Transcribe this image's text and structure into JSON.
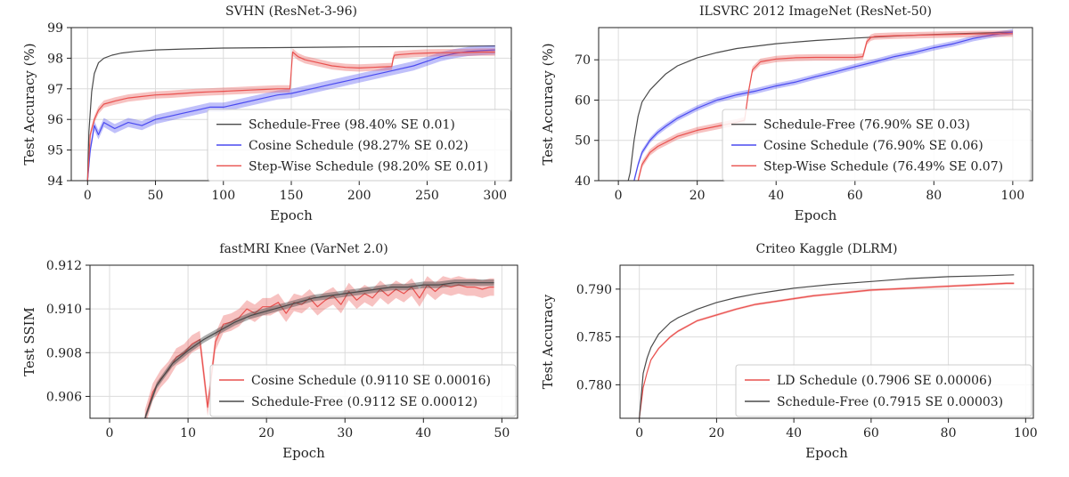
{
  "colors": {
    "schedule_free": "#4a4a4a",
    "cosine": "#4a4af0",
    "step": "#e9504e",
    "ld": "#e9504e",
    "grid": "#dcdcdc",
    "frame": "#222222"
  },
  "chart_data": [
    {
      "type": "line",
      "title": "SVHN (ResNet-3-96)",
      "xlabel": "Epoch",
      "ylabel": "Test Accuracy (%)",
      "xlim": [
        -12,
        312
      ],
      "ylim": [
        94,
        99
      ],
      "xticks": [
        0,
        50,
        100,
        150,
        200,
        250,
        300
      ],
      "yticks": [
        94,
        95,
        96,
        97,
        98,
        99
      ],
      "grid": true,
      "legend_position": "lower-right",
      "series": [
        {
          "name": "Schedule-Free (98.40% SE 0.01)",
          "color_key": "schedule_free",
          "band": 0,
          "x": [
            0,
            1,
            3,
            5,
            8,
            12,
            18,
            25,
            35,
            50,
            70,
            100,
            150,
            200,
            250,
            300
          ],
          "y": [
            94,
            95.6,
            96.9,
            97.5,
            97.85,
            98.0,
            98.1,
            98.17,
            98.22,
            98.27,
            98.3,
            98.33,
            98.35,
            98.37,
            98.38,
            98.4
          ]
        },
        {
          "name": "Cosine Schedule (98.27% SE 0.02)",
          "color_key": "cosine",
          "band": 0.15,
          "x": [
            0,
            2,
            5,
            8,
            12,
            20,
            30,
            40,
            50,
            60,
            70,
            80,
            90,
            100,
            110,
            120,
            130,
            140,
            150,
            160,
            170,
            180,
            190,
            200,
            210,
            220,
            230,
            240,
            250,
            260,
            270,
            280,
            290,
            300
          ],
          "y": [
            94,
            95.0,
            95.8,
            95.5,
            95.9,
            95.7,
            95.9,
            95.8,
            96.0,
            96.1,
            96.2,
            96.3,
            96.4,
            96.4,
            96.5,
            96.6,
            96.7,
            96.8,
            96.85,
            96.95,
            97.05,
            97.15,
            97.25,
            97.35,
            97.45,
            97.55,
            97.65,
            97.75,
            97.9,
            98.05,
            98.15,
            98.22,
            98.25,
            98.27
          ]
        },
        {
          "name": "Step-Wise Schedule (98.20% SE 0.01)",
          "color_key": "step",
          "band": 0.12,
          "x": [
            0,
            2,
            5,
            8,
            12,
            20,
            30,
            40,
            50,
            60,
            70,
            80,
            90,
            100,
            110,
            120,
            130,
            140,
            149,
            150,
            151,
            155,
            160,
            170,
            180,
            190,
            200,
            210,
            220,
            224,
            225,
            226,
            230,
            240,
            250,
            260,
            270,
            280,
            290,
            300
          ],
          "y": [
            94,
            95.5,
            96.0,
            96.3,
            96.5,
            96.6,
            96.7,
            96.75,
            96.8,
            96.82,
            96.85,
            96.88,
            96.9,
            96.92,
            96.94,
            96.96,
            96.98,
            97.0,
            97.0,
            97.6,
            98.2,
            98.05,
            97.95,
            97.85,
            97.75,
            97.7,
            97.68,
            97.7,
            97.72,
            97.73,
            98.0,
            98.1,
            98.12,
            98.15,
            98.17,
            98.18,
            98.18,
            98.19,
            98.2,
            98.2
          ]
        }
      ]
    },
    {
      "type": "line",
      "title": "ILSVRC 2012 ImageNet (ResNet-50)",
      "xlabel": "Epoch",
      "ylabel": "Test Accuracy (%)",
      "xlim": [
        -5,
        105
      ],
      "ylim": [
        40,
        78
      ],
      "xticks": [
        0,
        20,
        40,
        60,
        80,
        100
      ],
      "yticks": [
        40,
        50,
        60,
        70
      ],
      "grid": true,
      "legend_position": "lower-right",
      "series": [
        {
          "name": "Schedule-Free (76.90% SE 0.03)",
          "color_key": "schedule_free",
          "band": 0,
          "x": [
            2.5,
            3,
            4,
            5,
            6,
            8,
            10,
            12,
            15,
            20,
            25,
            30,
            40,
            50,
            60,
            70,
            80,
            90,
            100
          ],
          "y": [
            40,
            42,
            50,
            56,
            59.5,
            62.5,
            64.5,
            66.5,
            68.5,
            70.5,
            71.8,
            72.8,
            74.0,
            74.8,
            75.4,
            75.9,
            76.3,
            76.6,
            76.9
          ]
        },
        {
          "name": "Cosine Schedule (76.90% SE 0.06)",
          "color_key": "cosine",
          "band": 0.7,
          "x": [
            4,
            5,
            6,
            8,
            10,
            12,
            15,
            20,
            25,
            30,
            35,
            40,
            45,
            50,
            55,
            60,
            65,
            70,
            75,
            80,
            85,
            90,
            95,
            100
          ],
          "y": [
            40,
            44,
            47,
            50,
            52,
            53.5,
            55.5,
            58,
            60,
            61.3,
            62.3,
            63.5,
            64.5,
            65.8,
            67,
            68.3,
            69.5,
            70.8,
            71.8,
            73,
            74,
            75.3,
            76.2,
            76.9
          ]
        },
        {
          "name": "Step-Wise Schedule (76.49% SE 0.07)",
          "color_key": "step",
          "band": 0.8,
          "x": [
            5,
            6,
            8,
            10,
            12,
            15,
            20,
            25,
            30,
            32,
            33,
            34,
            36,
            40,
            45,
            50,
            55,
            60,
            62,
            63,
            64,
            65,
            70,
            80,
            90,
            100
          ],
          "y": [
            40,
            44,
            47,
            48.5,
            49.5,
            51,
            52.5,
            53.5,
            54.5,
            55,
            62,
            67.5,
            69.5,
            70.2,
            70.5,
            70.6,
            70.6,
            70.6,
            70.8,
            74.5,
            75.5,
            75.8,
            76.0,
            76.2,
            76.4,
            76.5
          ]
        }
      ]
    },
    {
      "type": "line",
      "title": "fastMRI Knee (VarNet 2.0)",
      "xlabel": "Epoch",
      "ylabel": "Test SSIM",
      "xlim": [
        -2.5,
        52
      ],
      "ylim": [
        0.905,
        0.912
      ],
      "xticks": [
        0,
        10,
        20,
        30,
        40,
        50
      ],
      "yticks": [
        0.906,
        0.908,
        0.91,
        0.912
      ],
      "ytick_decimals": 3,
      "grid": true,
      "legend_position": "lower-right",
      "series": [
        {
          "name": "Cosine Schedule (0.9110 SE 0.00016)",
          "color_key": "cosine_step",
          "band": 0.0004,
          "x": [
            4.5,
            5.5,
            6.5,
            7.5,
            8.5,
            9.5,
            10.5,
            11.5,
            12.5,
            13.5,
            14.5,
            15.5,
            16.5,
            17.5,
            18.5,
            19.5,
            20.5,
            21.5,
            22.5,
            23.5,
            24.5,
            25.5,
            26.5,
            27.5,
            28.5,
            29.5,
            30.5,
            31.5,
            32.5,
            33.5,
            34.5,
            35.5,
            36.5,
            37.5,
            38.5,
            39.5,
            40.5,
            41.5,
            42.5,
            43.5,
            44.5,
            45.5,
            46.5,
            47.5,
            48.5,
            49
          ],
          "y": [
            0.905,
            0.9062,
            0.9068,
            0.9072,
            0.9078,
            0.908,
            0.9084,
            0.9086,
            0.9055,
            0.9085,
            0.9093,
            0.9094,
            0.9096,
            0.91,
            0.9098,
            0.9101,
            0.9101,
            0.9103,
            0.9098,
            0.9103,
            0.9102,
            0.9105,
            0.9101,
            0.9104,
            0.9106,
            0.9102,
            0.9108,
            0.9104,
            0.9107,
            0.9105,
            0.9109,
            0.9106,
            0.9109,
            0.9107,
            0.911,
            0.9105,
            0.9111,
            0.9108,
            0.9111,
            0.911,
            0.9111,
            0.911,
            0.911,
            0.9109,
            0.911,
            0.911
          ]
        },
        {
          "name": "Schedule-Free (0.9112 SE 0.00012)",
          "color_key": "schedule_free",
          "band": 0.00015,
          "x": [
            4.5,
            6,
            8,
            10,
            12,
            14,
            16,
            18,
            20,
            22,
            24,
            26,
            28,
            30,
            32,
            34,
            36,
            38,
            40,
            42,
            44,
            46,
            48,
            49
          ],
          "y": [
            0.905,
            0.9065,
            0.9075,
            0.9081,
            0.9086,
            0.909,
            0.9094,
            0.9097,
            0.9099,
            0.9101,
            0.9103,
            0.9105,
            0.9106,
            0.9107,
            0.9108,
            0.9109,
            0.911,
            0.911,
            0.9111,
            0.9111,
            0.9112,
            0.9112,
            0.9112,
            0.9112
          ]
        }
      ]
    },
    {
      "type": "line",
      "title": "Criteo Kaggle (DLRM)",
      "xlabel": "Epoch",
      "ylabel": "Test Accuracy",
      "xlim": [
        -5,
        102
      ],
      "ylim": [
        0.7765,
        0.7925
      ],
      "xticks": [
        0,
        20,
        40,
        60,
        80,
        100
      ],
      "yticks": [
        0.78,
        0.785,
        0.79
      ],
      "ytick_decimals": 3,
      "grid": true,
      "legend_position": "lower-right",
      "series": [
        {
          "name": "LD Schedule (0.7906 SE 0.00006)",
          "color_key": "ld",
          "band": 0.00012,
          "x": [
            0,
            1,
            2,
            3,
            5,
            8,
            10,
            15,
            20,
            25,
            30,
            35,
            40,
            45,
            50,
            55,
            60,
            65,
            70,
            75,
            80,
            85,
            90,
            95,
            97
          ],
          "y": [
            0.7765,
            0.7797,
            0.7813,
            0.7826,
            0.7838,
            0.785,
            0.7856,
            0.7867,
            0.7873,
            0.7879,
            0.7884,
            0.7887,
            0.789,
            0.7893,
            0.7895,
            0.7897,
            0.7899,
            0.79,
            0.7901,
            0.7902,
            0.7903,
            0.7904,
            0.7905,
            0.7906,
            0.7906
          ]
        },
        {
          "name": "Schedule-Free (0.7915 SE 0.00003)",
          "color_key": "schedule_free",
          "band": 0,
          "x": [
            0,
            1,
            2,
            3,
            5,
            8,
            10,
            15,
            20,
            25,
            30,
            35,
            40,
            50,
            60,
            70,
            80,
            90,
            97
          ],
          "y": [
            0.7765,
            0.7812,
            0.7828,
            0.7839,
            0.7853,
            0.7865,
            0.787,
            0.7879,
            0.7886,
            0.7891,
            0.7895,
            0.7898,
            0.7901,
            0.7905,
            0.7908,
            0.7911,
            0.7913,
            0.7914,
            0.7915
          ]
        }
      ]
    }
  ]
}
